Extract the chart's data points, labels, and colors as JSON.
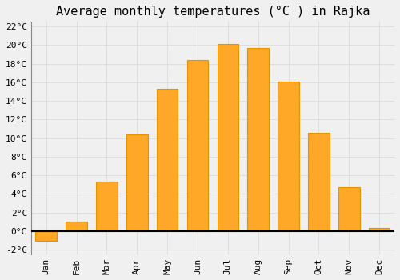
{
  "title": "Average monthly temperatures (°C ) in Rajka",
  "months": [
    "Jan",
    "Feb",
    "Mar",
    "Apr",
    "May",
    "Jun",
    "Jul",
    "Aug",
    "Sep",
    "Oct",
    "Nov",
    "Dec"
  ],
  "values": [
    -1.0,
    1.0,
    5.3,
    10.4,
    15.3,
    18.4,
    20.1,
    19.7,
    16.1,
    10.6,
    4.7,
    0.3
  ],
  "bar_color": "#FFA726",
  "bar_edge_color": "#E59400",
  "background_color": "#F0F0F0",
  "grid_color": "#DDDDDD",
  "ylim": [
    -2.5,
    22.5
  ],
  "yticks": [
    -2,
    0,
    2,
    4,
    6,
    8,
    10,
    12,
    14,
    16,
    18,
    20,
    22
  ],
  "title_fontsize": 11,
  "tick_fontsize": 8,
  "font_family": "monospace"
}
